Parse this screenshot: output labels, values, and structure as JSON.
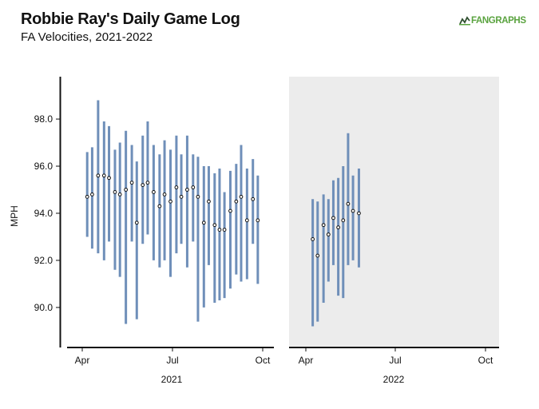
{
  "title": "Robbie Ray's Daily Game Log",
  "subtitle": "FA Velocities, 2021-2022",
  "logo_text": "FANGRAPHS",
  "colors": {
    "range_bar": "#6f8fb9",
    "panel2_bg": "#ececec",
    "logo": "#5aa33f"
  },
  "chart_data": {
    "type": "errorbar",
    "ylabel": "MPH",
    "ylim": [
      88.3,
      99.8
    ],
    "yticks": [
      90.0,
      92.0,
      94.0,
      96.0,
      98.0
    ],
    "ytick_labels": [
      "90.0",
      "92.0",
      "94.0",
      "96.0",
      "98.0"
    ],
    "panels": [
      {
        "year": "2021",
        "xtick_labels": [
          "Apr",
          "Jul",
          "Oct"
        ],
        "games": [
          {
            "date": "2021-04-06",
            "avg": 94.7,
            "min": 93.0,
            "max": 96.6
          },
          {
            "date": "2021-04-11",
            "avg": 94.8,
            "min": 92.5,
            "max": 96.8
          },
          {
            "date": "2021-04-17",
            "avg": 95.6,
            "min": 92.3,
            "max": 98.8
          },
          {
            "date": "2021-04-23",
            "avg": 95.6,
            "min": 92.0,
            "max": 97.9
          },
          {
            "date": "2021-04-28",
            "avg": 95.5,
            "min": 92.8,
            "max": 97.7
          },
          {
            "date": "2021-05-04",
            "avg": 94.9,
            "min": 91.6,
            "max": 96.7
          },
          {
            "date": "2021-05-09",
            "avg": 94.8,
            "min": 91.3,
            "max": 97.0
          },
          {
            "date": "2021-05-15",
            "avg": 95.0,
            "min": 89.3,
            "max": 97.5
          },
          {
            "date": "2021-05-21",
            "avg": 95.3,
            "min": 92.8,
            "max": 96.9
          },
          {
            "date": "2021-05-26",
            "avg": 93.6,
            "min": 89.5,
            "max": 96.2
          },
          {
            "date": "2021-06-01",
            "avg": 95.2,
            "min": 92.7,
            "max": 97.3
          },
          {
            "date": "2021-06-06",
            "avg": 95.3,
            "min": 93.1,
            "max": 97.9
          },
          {
            "date": "2021-06-12",
            "avg": 94.9,
            "min": 92.0,
            "max": 96.9
          },
          {
            "date": "2021-06-18",
            "avg": 94.3,
            "min": 91.7,
            "max": 96.5
          },
          {
            "date": "2021-06-23",
            "avg": 94.8,
            "min": 92.0,
            "max": 97.1
          },
          {
            "date": "2021-06-29",
            "avg": 94.5,
            "min": 91.3,
            "max": 96.7
          },
          {
            "date": "2021-07-05",
            "avg": 95.1,
            "min": 92.3,
            "max": 97.3
          },
          {
            "date": "2021-07-10",
            "avg": 94.7,
            "min": 92.7,
            "max": 96.5
          },
          {
            "date": "2021-07-16",
            "avg": 95.0,
            "min": 91.7,
            "max": 97.3
          },
          {
            "date": "2021-07-22",
            "avg": 95.1,
            "min": 92.8,
            "max": 96.5
          },
          {
            "date": "2021-07-27",
            "avg": 94.7,
            "min": 89.4,
            "max": 96.4
          },
          {
            "date": "2021-08-02",
            "avg": 93.6,
            "min": 90.0,
            "max": 96.0
          },
          {
            "date": "2021-08-07",
            "avg": 94.5,
            "min": 91.8,
            "max": 96.0
          },
          {
            "date": "2021-08-13",
            "avg": 93.5,
            "min": 90.2,
            "max": 95.7
          },
          {
            "date": "2021-08-18",
            "avg": 93.3,
            "min": 90.3,
            "max": 95.9
          },
          {
            "date": "2021-08-23",
            "avg": 93.3,
            "min": 90.4,
            "max": 94.9
          },
          {
            "date": "2021-08-29",
            "avg": 94.1,
            "min": 90.8,
            "max": 95.8
          },
          {
            "date": "2021-09-04",
            "avg": 94.5,
            "min": 91.4,
            "max": 96.1
          },
          {
            "date": "2021-09-09",
            "avg": 94.7,
            "min": 91.1,
            "max": 96.9
          },
          {
            "date": "2021-09-15",
            "avg": 93.7,
            "min": 91.2,
            "max": 95.9
          },
          {
            "date": "2021-09-21",
            "avg": 94.6,
            "min": 92.7,
            "max": 96.3
          },
          {
            "date": "2021-09-26",
            "avg": 93.7,
            "min": 91.0,
            "max": 95.6
          }
        ]
      },
      {
        "year": "2022",
        "xtick_labels": [
          "Apr",
          "Jul",
          "Oct"
        ],
        "games": [
          {
            "date": "2022-04-08",
            "avg": 92.9,
            "min": 89.2,
            "max": 94.6
          },
          {
            "date": "2022-04-13",
            "avg": 92.2,
            "min": 89.4,
            "max": 94.5
          },
          {
            "date": "2022-04-19",
            "avg": 93.5,
            "min": 90.2,
            "max": 94.8
          },
          {
            "date": "2022-04-24",
            "avg": 93.1,
            "min": 91.1,
            "max": 94.6
          },
          {
            "date": "2022-04-29",
            "avg": 93.8,
            "min": 91.8,
            "max": 95.4
          },
          {
            "date": "2022-05-04",
            "avg": 93.4,
            "min": 90.5,
            "max": 95.5
          },
          {
            "date": "2022-05-09",
            "avg": 93.7,
            "min": 90.4,
            "max": 96.0
          },
          {
            "date": "2022-05-14",
            "avg": 94.4,
            "min": 91.8,
            "max": 97.4
          },
          {
            "date": "2022-05-19",
            "avg": 94.1,
            "min": 92.0,
            "max": 95.6
          },
          {
            "date": "2022-05-25",
            "avg": 94.0,
            "min": 91.7,
            "max": 95.9
          }
        ]
      }
    ]
  }
}
